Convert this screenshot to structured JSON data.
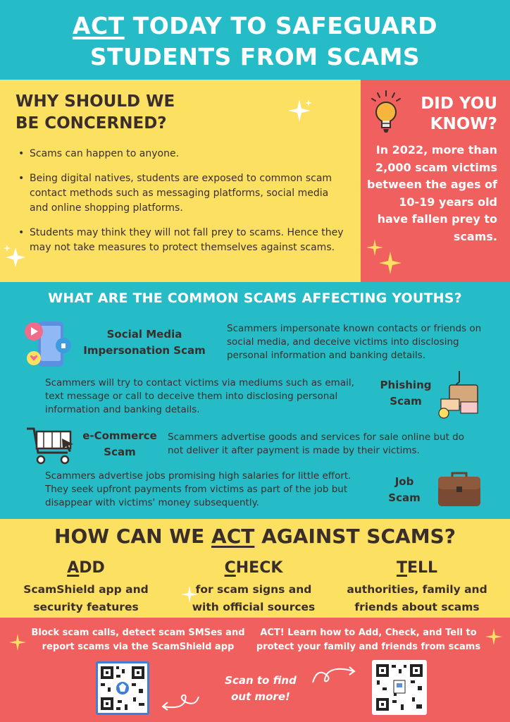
{
  "header": {
    "title_act": "ACT",
    "title_rest1": " TODAY TO SAFEGUARD",
    "title_line2": "STUDENTS FROM SCAMS"
  },
  "concern": {
    "heading_line1": "WHY SHOULD WE",
    "heading_line2": "BE CONCERNED?",
    "points": [
      "Scams can happen to anyone.",
      "Being digital natives, students are exposed to common scam contact methods such as messaging platforms, social media and online shopping platforms.",
      "Students may think they will not fall prey to scams. Hence they may not take measures to protect themselves against scams."
    ]
  },
  "did_you_know": {
    "heading_line1": "DID YOU",
    "heading_line2": "KNOW?",
    "fact": "In 2022, more than 2,000 scam victims between the ages of 10-19 years old have fallen prey to scams."
  },
  "common_scams": {
    "heading": "WHAT ARE THE COMMON SCAMS AFFECTING YOUTHS?",
    "social_media": {
      "title_line1": "Social Media",
      "title_line2": "Impersonation Scam",
      "desc": "Scammers impersonate known contacts or friends on social media, and deceive victims into disclosing personal information and banking details."
    },
    "phishing": {
      "title_line1": "Phishing",
      "title_line2": "Scam",
      "desc": "Scammers will try to contact victims via mediums such as email, text message or call to deceive them into disclosing personal information and banking details."
    },
    "ecommerce": {
      "title_line1": "e-Commerce",
      "title_line2": "Scam",
      "desc": "Scammers advertise goods and services for sale online but do not deliver it after payment is made by their victims."
    },
    "job": {
      "title_line1": "Job",
      "title_line2": "Scam",
      "desc": "Scammers advertise jobs promising high salaries for little effort. They seek upfront payments from victims as part of the job but disappear with victims' money subsequently."
    }
  },
  "act_section": {
    "heading_pre": "HOW CAN WE ",
    "heading_act": "ACT",
    "heading_post": " AGAINST SCAMS?",
    "add": {
      "first": "A",
      "rest": "DD",
      "line1": "ScamShield app and",
      "line2": "security features"
    },
    "check": {
      "first": "C",
      "rest": "HECK",
      "line1": "for scam signs and",
      "line2": "with official sources"
    },
    "tell": {
      "first": "T",
      "rest": "ELL",
      "line1": "authorities, family and",
      "line2": "friends about scams"
    }
  },
  "footer": {
    "left_line1": "Block scam calls, detect scam SMSes and",
    "left_line2": "report scams via the ScamShield app",
    "right_line1": "ACT! Learn how to Add, Check, and Tell to",
    "right_line2": "protect your family and friends from scams",
    "scan_line1": "Scan to find",
    "scan_line2": "out more!"
  },
  "colors": {
    "teal": "#25bcc8",
    "yellow": "#fce062",
    "coral": "#f0605e",
    "dark_text": "#3a2e2a"
  }
}
